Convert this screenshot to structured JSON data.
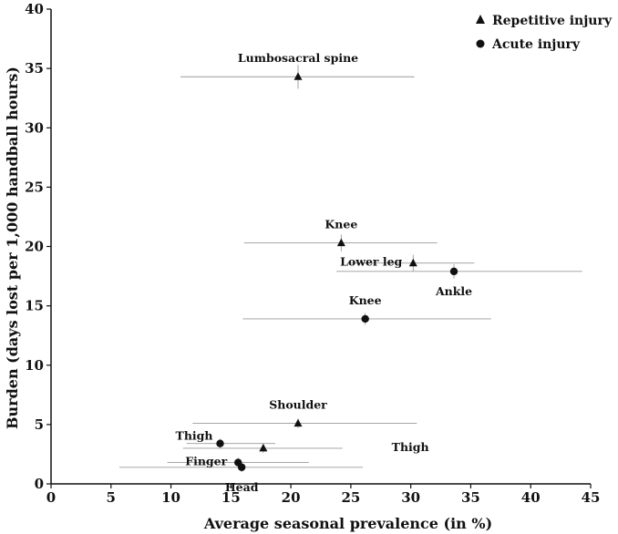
{
  "chart_data": {
    "type": "scatter",
    "title": "",
    "xlabel": "Average seasonal prevalence (in %)",
    "ylabel": "Burden (days lost per 1,000 handball hours)",
    "xlim": [
      0,
      45
    ],
    "ylim": [
      0,
      40
    ],
    "x_ticks": [
      0,
      5,
      10,
      15,
      20,
      25,
      30,
      35,
      40,
      45
    ],
    "y_ticks": [
      0,
      5,
      10,
      15,
      20,
      25,
      30,
      35,
      40
    ],
    "legend": {
      "position": "top-right",
      "entries": [
        {
          "name": "Repetitive injury",
          "marker": "triangle"
        },
        {
          "name": "Acute injury",
          "marker": "circle"
        }
      ]
    },
    "series": [
      {
        "name": "Repetitive injury",
        "marker": "triangle",
        "points": [
          {
            "label": "Lumbosacral spine",
            "label_pos": "above",
            "x": 20.6,
            "y": 34.3,
            "x_err": [
              10.8,
              30.3
            ],
            "y_err": [
              33.3,
              35.3
            ]
          },
          {
            "label": "Knee",
            "label_pos": "above",
            "x": 24.2,
            "y": 20.3,
            "x_err": [
              16.1,
              32.2
            ],
            "y_err": [
              19.6,
              21.0
            ]
          },
          {
            "label": "Lower leg",
            "label_pos": "left",
            "x": 30.2,
            "y": 18.6,
            "x_err": [
              24.7,
              35.3
            ],
            "y_err": [
              17.9,
              19.3
            ]
          },
          {
            "label": "Shoulder",
            "label_pos": "above",
            "x": 20.6,
            "y": 5.1,
            "x_err": [
              11.8,
              30.5
            ],
            "y_err": [
              4.7,
              5.5
            ]
          },
          {
            "label": "Thigh",
            "label_pos": "right",
            "x": 17.7,
            "y": 3.0,
            "x_err": [
              11.0,
              24.3
            ],
            "y_err": [
              2.6,
              3.4
            ]
          }
        ]
      },
      {
        "name": "Acute injury",
        "marker": "circle",
        "points": [
          {
            "label": "Ankle",
            "label_pos": "below",
            "x": 33.6,
            "y": 17.9,
            "x_err": [
              23.8,
              44.3
            ],
            "y_err": [
              17.3,
              18.5
            ]
          },
          {
            "label": "Knee",
            "label_pos": "above",
            "x": 26.2,
            "y": 13.9,
            "x_err": [
              16.0,
              36.7
            ],
            "y_err": [
              13.4,
              14.4
            ]
          },
          {
            "label": "Thigh",
            "label_pos": "above-left",
            "x": 14.1,
            "y": 3.4,
            "x_err": [
              11.3,
              18.7
            ],
            "y_err": [
              3.0,
              3.8
            ]
          },
          {
            "label": "Finger",
            "label_pos": "left",
            "x": 15.6,
            "y": 1.8,
            "x_err": [
              9.7,
              21.5
            ],
            "y_err": [
              1.4,
              2.2
            ]
          },
          {
            "label": "Head",
            "label_pos": "below",
            "x": 15.9,
            "y": 1.4,
            "x_err": [
              5.7,
              26.0
            ],
            "y_err": [
              1.0,
              1.8
            ]
          }
        ]
      }
    ]
  }
}
